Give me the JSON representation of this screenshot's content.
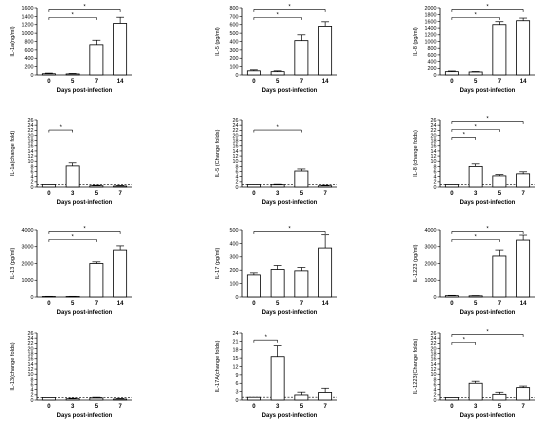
{
  "chart_data": [
    {
      "type": "bar",
      "xlabel": "Days post-infection",
      "ylabel": "IL-1a(ng/ml)",
      "categories": [
        "0",
        "5",
        "7",
        "14"
      ],
      "values": [
        30,
        25,
        720,
        1230
      ],
      "errors": [
        15,
        12,
        110,
        150
      ],
      "yticks": [
        "0",
        "200",
        "400",
        "600",
        "800",
        "1000",
        "1200",
        "1400",
        "1600"
      ],
      "ylim": [
        0,
        1600
      ],
      "sig": [
        {
          "from": 0,
          "to": 2,
          "label": "*"
        },
        {
          "from": 0,
          "to": 3,
          "label": "*"
        }
      ]
    },
    {
      "type": "bar",
      "xlabel": "Days post-infection",
      "ylabel": "IL-5 (pg/ml)",
      "categories": [
        "0",
        "5",
        "7",
        "14"
      ],
      "values": [
        50,
        40,
        410,
        580
      ],
      "errors": [
        12,
        10,
        70,
        55
      ],
      "yticks": [
        "0",
        "100",
        "200",
        "300",
        "400",
        "500",
        "600",
        "700",
        "800"
      ],
      "ylim": [
        0,
        800
      ],
      "sig": [
        {
          "from": 0,
          "to": 2,
          "label": "*"
        },
        {
          "from": 0,
          "to": 3,
          "label": "*"
        }
      ]
    },
    {
      "type": "bar",
      "xlabel": "Days post-infection",
      "ylabel": "IL-8 (pg/ml)",
      "categories": [
        "0",
        "5",
        "7",
        "14"
      ],
      "values": [
        100,
        90,
        1500,
        1620
      ],
      "errors": [
        20,
        15,
        90,
        80
      ],
      "yticks": [
        "0",
        "200",
        "400",
        "600",
        "800",
        "1000",
        "1200",
        "1400",
        "1600",
        "1800",
        "2000"
      ],
      "ylim": [
        0,
        2000
      ],
      "sig": [
        {
          "from": 0,
          "to": 2,
          "label": "*"
        },
        {
          "from": 0,
          "to": 3,
          "label": "*"
        }
      ]
    },
    {
      "type": "bar",
      "xlabel": "Days post-infection",
      "ylabel": "IL-1a(change fold)",
      "categories": [
        "0",
        "3",
        "5",
        "7"
      ],
      "values": [
        1,
        8.2,
        0.5,
        0.4
      ],
      "errors": [
        0,
        1.2,
        0.2,
        0.2
      ],
      "yticks": [
        "0",
        "2",
        "4",
        "6",
        "8",
        "10",
        "12",
        "14",
        "16",
        "18",
        "20",
        "22",
        "24",
        "26"
      ],
      "ylim": [
        0,
        26
      ],
      "refline": 1,
      "sig": [
        {
          "from": 0,
          "to": 1,
          "label": "*"
        }
      ]
    },
    {
      "type": "bar",
      "xlabel": "Days post-infection",
      "ylabel": "IL-5 (Change folds)",
      "categories": [
        "0",
        "3",
        "5",
        "7"
      ],
      "values": [
        1,
        0.9,
        6.2,
        0.5
      ],
      "errors": [
        0,
        0.2,
        0.8,
        0.2
      ],
      "yticks": [
        "0",
        "2",
        "4",
        "6",
        "8",
        "10",
        "12",
        "14",
        "16",
        "18",
        "20",
        "22",
        "24",
        "26"
      ],
      "ylim": [
        0,
        26
      ],
      "refline": 1,
      "sig": [
        {
          "from": 0,
          "to": 2,
          "label": "*"
        }
      ]
    },
    {
      "type": "bar",
      "xlabel": "Days post-infection",
      "ylabel": "IL-8 (change folds)",
      "categories": [
        "0",
        "3",
        "5",
        "7"
      ],
      "values": [
        1,
        8,
        4.3,
        5.1
      ],
      "errors": [
        0,
        1,
        0.5,
        0.8
      ],
      "yticks": [
        "0",
        "2",
        "4",
        "6",
        "8",
        "10",
        "12",
        "14",
        "16",
        "18",
        "20",
        "22",
        "24",
        "26"
      ],
      "ylim": [
        0,
        26
      ],
      "refline": 1,
      "sig": [
        {
          "from": 0,
          "to": 1,
          "label": "*"
        },
        {
          "from": 0,
          "to": 2,
          "label": "*"
        },
        {
          "from": 0,
          "to": 3,
          "label": "*"
        }
      ]
    },
    {
      "type": "bar",
      "xlabel": "Days post-infection",
      "ylabel": "IL-13 (pg/ml)",
      "categories": [
        "0",
        "5",
        "7",
        "14"
      ],
      "values": [
        30,
        30,
        2000,
        2800
      ],
      "errors": [
        10,
        10,
        100,
        250
      ],
      "yticks": [
        "0",
        "1000",
        "2000",
        "3000",
        "4000"
      ],
      "ylim": [
        0,
        4000
      ],
      "sig": [
        {
          "from": 0,
          "to": 2,
          "label": "*"
        },
        {
          "from": 0,
          "to": 3,
          "label": "*"
        }
      ]
    },
    {
      "type": "bar",
      "xlabel": "Days post-infection",
      "ylabel": "IL-17 (pg/ml)",
      "categories": [
        "0",
        "5",
        "7",
        "14"
      ],
      "values": [
        165,
        205,
        195,
        365
      ],
      "errors": [
        15,
        30,
        25,
        100
      ],
      "yticks": [
        "0",
        "100",
        "200",
        "300",
        "400",
        "500"
      ],
      "ylim": [
        0,
        500
      ],
      "sig": [
        {
          "from": 0,
          "to": 3,
          "label": "*"
        }
      ]
    },
    {
      "type": "bar",
      "xlabel": "Days post-infection",
      "ylabel": "IL-1223 (pg/ml)",
      "categories": [
        "0",
        "5",
        "7",
        "14"
      ],
      "values": [
        80,
        70,
        2450,
        3400
      ],
      "errors": [
        20,
        15,
        350,
        300
      ],
      "yticks": [
        "0",
        "1000",
        "2000",
        "3000",
        "4000"
      ],
      "ylim": [
        0,
        4000
      ],
      "sig": [
        {
          "from": 0,
          "to": 2,
          "label": "*"
        },
        {
          "from": 0,
          "to": 3,
          "label": "*"
        }
      ]
    },
    {
      "type": "bar",
      "xlabel": "Days post-infection",
      "ylabel": "IL-13(change folds)",
      "categories": [
        "0",
        "3",
        "5",
        "7"
      ],
      "values": [
        1,
        0.5,
        0.8,
        0.4
      ],
      "errors": [
        0,
        0.2,
        0.3,
        0.2
      ],
      "yticks": [
        "0",
        "2",
        "4",
        "6",
        "8",
        "10",
        "12",
        "14",
        "16",
        "18",
        "20",
        "22",
        "24",
        "26"
      ],
      "ylim": [
        0,
        26
      ],
      "refline": 1,
      "sig": []
    },
    {
      "type": "bar",
      "xlabel": "Days post-infection",
      "ylabel": "IL-17A(change folds)",
      "categories": [
        "0",
        "3",
        "5",
        "7"
      ],
      "values": [
        1,
        15.5,
        1.8,
        2.7
      ],
      "errors": [
        0,
        4,
        1,
        1.5
      ],
      "yticks": [
        "0",
        "3",
        "6",
        "9",
        "12",
        "15",
        "18",
        "21",
        "24"
      ],
      "ylim": [
        0,
        24
      ],
      "refline": 1,
      "sig": [
        {
          "from": 0,
          "to": 1,
          "label": "*"
        }
      ]
    },
    {
      "type": "bar",
      "xlabel": "Days post-infection",
      "ylabel": "IL-1223(Change folds)",
      "categories": [
        "0",
        "3",
        "5",
        "7"
      ],
      "values": [
        1,
        6.5,
        2.2,
        4.8
      ],
      "errors": [
        0,
        0.8,
        0.8,
        0.6
      ],
      "yticks": [
        "0",
        "2",
        "4",
        "6",
        "8",
        "10",
        "12",
        "14",
        "16",
        "18",
        "20",
        "22",
        "24",
        "26"
      ],
      "ylim": [
        0,
        26
      ],
      "refline": 1,
      "sig": [
        {
          "from": 0,
          "to": 1,
          "label": "*"
        },
        {
          "from": 0,
          "to": 3,
          "label": "*"
        }
      ]
    }
  ]
}
